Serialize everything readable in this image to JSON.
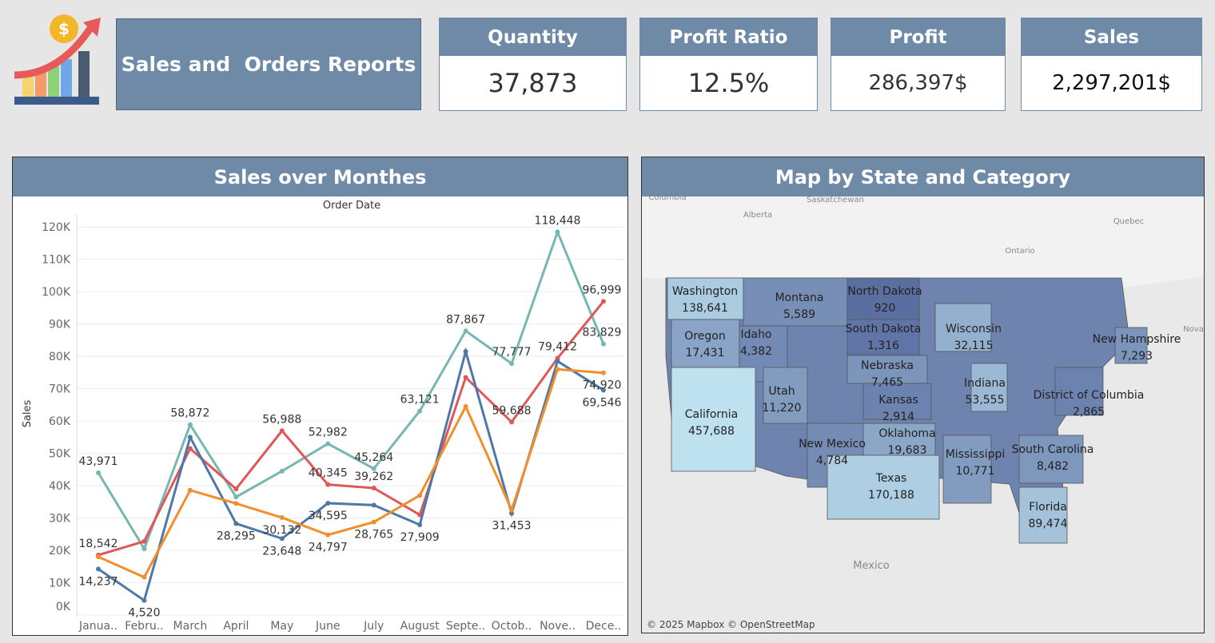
{
  "header": {
    "title": "Sales and  Orders Reports"
  },
  "kpis": [
    {
      "label": "Quantity",
      "value": "37,873"
    },
    {
      "label": "Profit Ratio",
      "value": "12.5%"
    },
    {
      "label": "Profit",
      "value": "286,397$"
    },
    {
      "label": "Sales",
      "value": "2,297,201$"
    }
  ],
  "chart_data": {
    "type": "line",
    "title": "Sales over Monthes",
    "x_label": "Order Date",
    "y_label": "Sales",
    "categories": [
      "Janua..",
      "Febru..",
      "March",
      "April",
      "May",
      "June",
      "July",
      "August",
      "Septe..",
      "Octob..",
      "Nove..",
      "Dece.."
    ],
    "series": [
      {
        "color": "#76b7b2",
        "values": [
          43971,
          20500,
          58872,
          36500,
          44500,
          52982,
          45264,
          63121,
          87867,
          77777,
          118448,
          83829
        ],
        "value_labels": [
          "43,971",
          null,
          "58,872",
          null,
          null,
          "52,982",
          "45,264",
          "63,121",
          "87,867",
          "77,777",
          "118,448",
          "83,829"
        ]
      },
      {
        "color": "#e15759",
        "values": [
          18542,
          22800,
          51500,
          39000,
          56988,
          40345,
          39262,
          31000,
          73500,
          59688,
          79412,
          96999
        ],
        "value_labels": [
          "18,542",
          null,
          null,
          null,
          "56,988",
          "40,345",
          "39,262",
          null,
          null,
          "59,688",
          "79,412",
          "96,999"
        ]
      },
      {
        "color": "#4e79a7",
        "values": [
          14237,
          4520,
          55000,
          28295,
          23648,
          34595,
          34000,
          27909,
          81500,
          31453,
          78500,
          69546
        ],
        "value_labels": [
          "14,237",
          "4,520",
          null,
          "28,295",
          "23,648",
          "34,595",
          null,
          "27,909",
          null,
          "31,453",
          null,
          "69,546"
        ]
      },
      {
        "color": "#f28e2b",
        "values": [
          18000,
          11700,
          38600,
          34500,
          30132,
          24797,
          28765,
          37000,
          64500,
          32500,
          76000,
          74920
        ],
        "value_labels": [
          null,
          null,
          null,
          null,
          "30,132",
          "24,797",
          "28,765",
          null,
          null,
          null,
          null,
          "74,920"
        ]
      }
    ],
    "ylim": [
      0,
      124000
    ],
    "yticks": [
      {
        "value": 0,
        "label": "0K"
      },
      {
        "value": 10000,
        "label": "10K"
      },
      {
        "value": 20000,
        "label": "20K"
      },
      {
        "value": 30000,
        "label": "30K"
      },
      {
        "value": 40000,
        "label": "40K"
      },
      {
        "value": 50000,
        "label": "50K"
      },
      {
        "value": 60000,
        "label": "60K"
      },
      {
        "value": 70000,
        "label": "70K"
      },
      {
        "value": 80000,
        "label": "80K"
      },
      {
        "value": 90000,
        "label": "90K"
      },
      {
        "value": 100000,
        "label": "100K"
      },
      {
        "value": 110000,
        "label": "110K"
      },
      {
        "value": 120000,
        "label": "120K"
      }
    ],
    "grid": true
  },
  "map": {
    "title": "Map by State and Category",
    "states": [
      {
        "name": "Washington",
        "value": 138641,
        "label": "138,641"
      },
      {
        "name": "Montana",
        "value": 5589,
        "label": "5,589"
      },
      {
        "name": "North Dakota",
        "value": 920,
        "label": "920"
      },
      {
        "name": "Oregon",
        "value": 17431,
        "label": "17,431"
      },
      {
        "name": "Idaho",
        "value": 4382,
        "label": "4,382"
      },
      {
        "name": "South Dakota",
        "value": 1316,
        "label": "1,316"
      },
      {
        "name": "Wisconsin",
        "value": 32115,
        "label": "32,115"
      },
      {
        "name": "New Hampshire",
        "value": 7293,
        "label": "7,293"
      },
      {
        "name": "Nebraska",
        "value": 7465,
        "label": "7,465"
      },
      {
        "name": "Utah",
        "value": 11220,
        "label": "11,220"
      },
      {
        "name": "Indiana",
        "value": 53555,
        "label": "53,555"
      },
      {
        "name": "California",
        "value": 457688,
        "label": "457,688"
      },
      {
        "name": "Kansas",
        "value": 2914,
        "label": "2,914"
      },
      {
        "name": "District of Columbia",
        "value": 2865,
        "label": "2,865"
      },
      {
        "name": "Oklahoma",
        "value": 19683,
        "label": "19,683"
      },
      {
        "name": "New Mexico",
        "value": 4784,
        "label": "4,784"
      },
      {
        "name": "Mississippi",
        "value": 10771,
        "label": "10,771"
      },
      {
        "name": "South Carolina",
        "value": 8482,
        "label": "8,482"
      },
      {
        "name": "Texas",
        "value": 170188,
        "label": "170,188"
      },
      {
        "name": "Florida",
        "value": 89474,
        "label": "89,474"
      }
    ],
    "places": [
      "Columbia",
      "Saskatchewan",
      "Alberta",
      "Quebec",
      "Ontario",
      "Mexico",
      "Nova"
    ],
    "attribution": "© 2025 Mapbox © OpenStreetMap"
  }
}
